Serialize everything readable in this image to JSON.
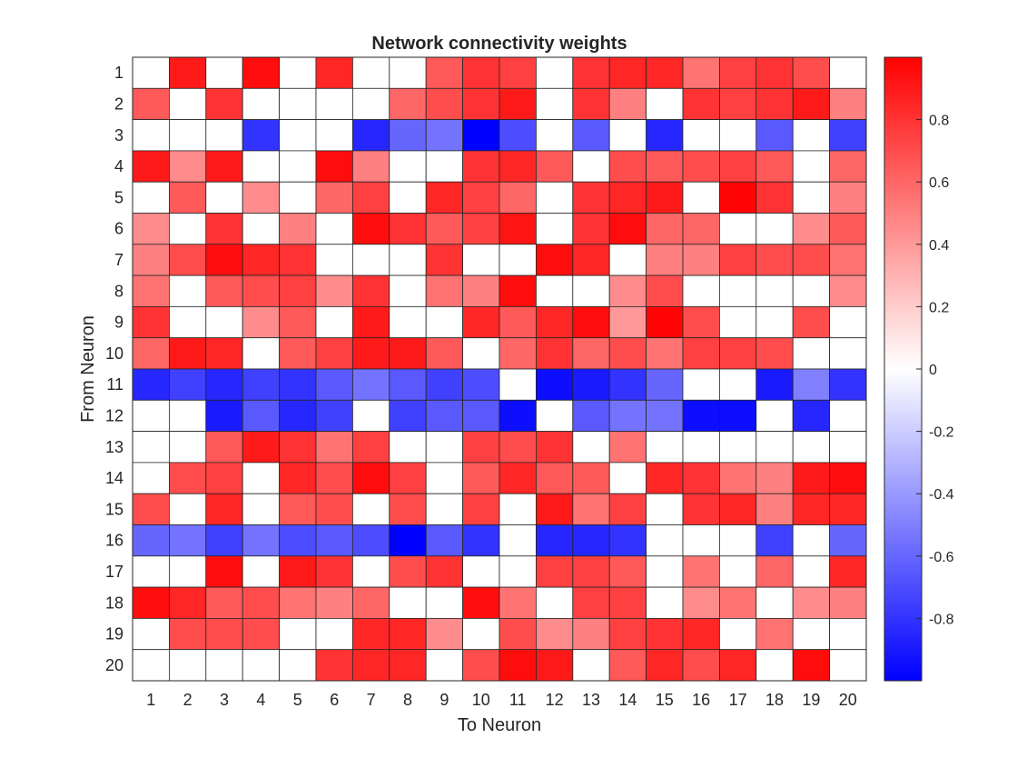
{
  "chart_data": {
    "type": "heatmap",
    "title": "Network connectivity weights",
    "xlabel": "To Neuron",
    "ylabel": "From Neuron",
    "x_categories": [
      "1",
      "2",
      "3",
      "4",
      "5",
      "6",
      "7",
      "8",
      "9",
      "10",
      "11",
      "12",
      "13",
      "14",
      "15",
      "16",
      "17",
      "18",
      "19",
      "20"
    ],
    "y_categories": [
      "1",
      "2",
      "3",
      "4",
      "5",
      "6",
      "7",
      "8",
      "9",
      "10",
      "11",
      "12",
      "13",
      "14",
      "15",
      "16",
      "17",
      "18",
      "19",
      "20"
    ],
    "color_limits": [
      -1,
      1
    ],
    "colormap": {
      "low": "#0000ff",
      "mid": "#ffffff",
      "high": "#ff0000"
    },
    "colorbar_ticks": [
      "0.8",
      "0.6",
      "0.4",
      "0.2",
      "0",
      "-0.2",
      "-0.4",
      "-0.6",
      "-0.8"
    ],
    "colorbar_tick_values": [
      0.8,
      0.6,
      0.4,
      0.2,
      0,
      -0.2,
      -0.4,
      -0.6,
      -0.8
    ],
    "values": [
      [
        0,
        0.9,
        0,
        0.95,
        0,
        0.85,
        0,
        0,
        0.65,
        0.8,
        0.75,
        0,
        0.8,
        0.85,
        0.85,
        0.55,
        0.75,
        0.8,
        0.7,
        0
      ],
      [
        0.65,
        0,
        0.8,
        0,
        0,
        0,
        0,
        0.6,
        0.7,
        0.8,
        0.9,
        0,
        0.8,
        0.5,
        0,
        0.8,
        0.75,
        0.8,
        0.9,
        0.5
      ],
      [
        0,
        0,
        0,
        -0.8,
        0,
        0,
        -0.85,
        -0.6,
        -0.55,
        -1.0,
        -0.7,
        0,
        -0.65,
        0,
        -0.85,
        0,
        0,
        -0.65,
        0,
        -0.75
      ],
      [
        0.9,
        0.45,
        0.9,
        0,
        0,
        0.95,
        0.5,
        0,
        0,
        0.8,
        0.85,
        0.65,
        0,
        0.7,
        0.65,
        0.7,
        0.75,
        0.65,
        0,
        0.6
      ],
      [
        0,
        0.65,
        0,
        0.45,
        0,
        0.6,
        0.75,
        0,
        0.85,
        0.75,
        0.6,
        0,
        0.8,
        0.85,
        0.9,
        0,
        0.98,
        0.8,
        0,
        0.5
      ],
      [
        0.45,
        0,
        0.8,
        0,
        0.5,
        0,
        0.95,
        0.8,
        0.65,
        0.75,
        0.92,
        0,
        0.8,
        0.95,
        0.6,
        0.6,
        0,
        0,
        0.45,
        0.65
      ],
      [
        0.5,
        0.7,
        0.95,
        0.85,
        0.8,
        0,
        0,
        0,
        0.8,
        0,
        0,
        0.95,
        0.85,
        0,
        0.5,
        0.5,
        0.75,
        0.7,
        0.7,
        0.55
      ],
      [
        0.55,
        0,
        0.65,
        0.7,
        0.75,
        0.45,
        0.8,
        0,
        0.55,
        0.5,
        0.95,
        0,
        0,
        0.45,
        0.7,
        0,
        0,
        0,
        0,
        0.45
      ],
      [
        0.8,
        0,
        0,
        0.45,
        0.65,
        0,
        0.9,
        0,
        0,
        0.85,
        0.65,
        0.85,
        0.95,
        0.4,
        0.98,
        0.7,
        0,
        0,
        0.7,
        0
      ],
      [
        0.6,
        0.9,
        0.85,
        0,
        0.65,
        0.75,
        0.9,
        0.9,
        0.65,
        0,
        0.6,
        0.8,
        0.6,
        0.7,
        0.55,
        0.75,
        0.75,
        0.7,
        0,
        0
      ],
      [
        -0.85,
        -0.75,
        -0.85,
        -0.75,
        -0.8,
        -0.65,
        -0.55,
        -0.65,
        -0.75,
        -0.7,
        0,
        -0.95,
        -0.9,
        -0.8,
        -0.6,
        0,
        0,
        -0.9,
        -0.5,
        -0.8
      ],
      [
        0,
        0,
        -0.9,
        -0.65,
        -0.85,
        -0.75,
        0,
        -0.75,
        -0.65,
        -0.65,
        -0.95,
        0,
        -0.65,
        -0.55,
        -0.55,
        -0.95,
        -0.95,
        0,
        -0.85,
        0
      ],
      [
        0,
        0,
        0.65,
        0.9,
        0.8,
        0.55,
        0.75,
        0,
        0,
        0.75,
        0.7,
        0.8,
        0,
        0.55,
        0,
        0,
        0,
        0,
        0,
        0
      ],
      [
        0,
        0.7,
        0.75,
        0,
        0.85,
        0.7,
        0.95,
        0.75,
        0,
        0.65,
        0.85,
        0.65,
        0.65,
        0,
        0.85,
        0.8,
        0.55,
        0.5,
        0.9,
        0.95
      ],
      [
        0.7,
        0,
        0.85,
        0,
        0.65,
        0.7,
        0,
        0.7,
        0,
        0.75,
        0,
        0.9,
        0.55,
        0.75,
        0,
        0.8,
        0.85,
        0.5,
        0.85,
        0.85
      ],
      [
        -0.6,
        -0.55,
        -0.75,
        -0.55,
        -0.7,
        -0.65,
        -0.7,
        -1.0,
        -0.65,
        -0.8,
        0,
        -0.85,
        -0.85,
        -0.8,
        0,
        0,
        0,
        -0.75,
        0,
        -0.6
      ],
      [
        0,
        0,
        0.95,
        0,
        0.9,
        0.8,
        0,
        0.7,
        0.8,
        0,
        0,
        0.75,
        0.75,
        0.65,
        0,
        0.55,
        0,
        0.6,
        0,
        0.85
      ],
      [
        0.95,
        0.85,
        0.65,
        0.7,
        0.55,
        0.5,
        0.6,
        0,
        0,
        0.95,
        0.55,
        0,
        0.75,
        0.75,
        0,
        0.45,
        0.55,
        0,
        0.45,
        0.5
      ],
      [
        0,
        0.7,
        0.7,
        0.7,
        0,
        0,
        0.85,
        0.85,
        0.45,
        0,
        0.7,
        0.45,
        0.5,
        0.75,
        0.8,
        0.85,
        0,
        0.55,
        0,
        0
      ],
      [
        0,
        0,
        0,
        0,
        0,
        0.8,
        0.85,
        0.85,
        0,
        0.7,
        0.95,
        0.9,
        0,
        0.65,
        0.85,
        0.7,
        0.85,
        0,
        0.95,
        0
      ]
    ]
  }
}
